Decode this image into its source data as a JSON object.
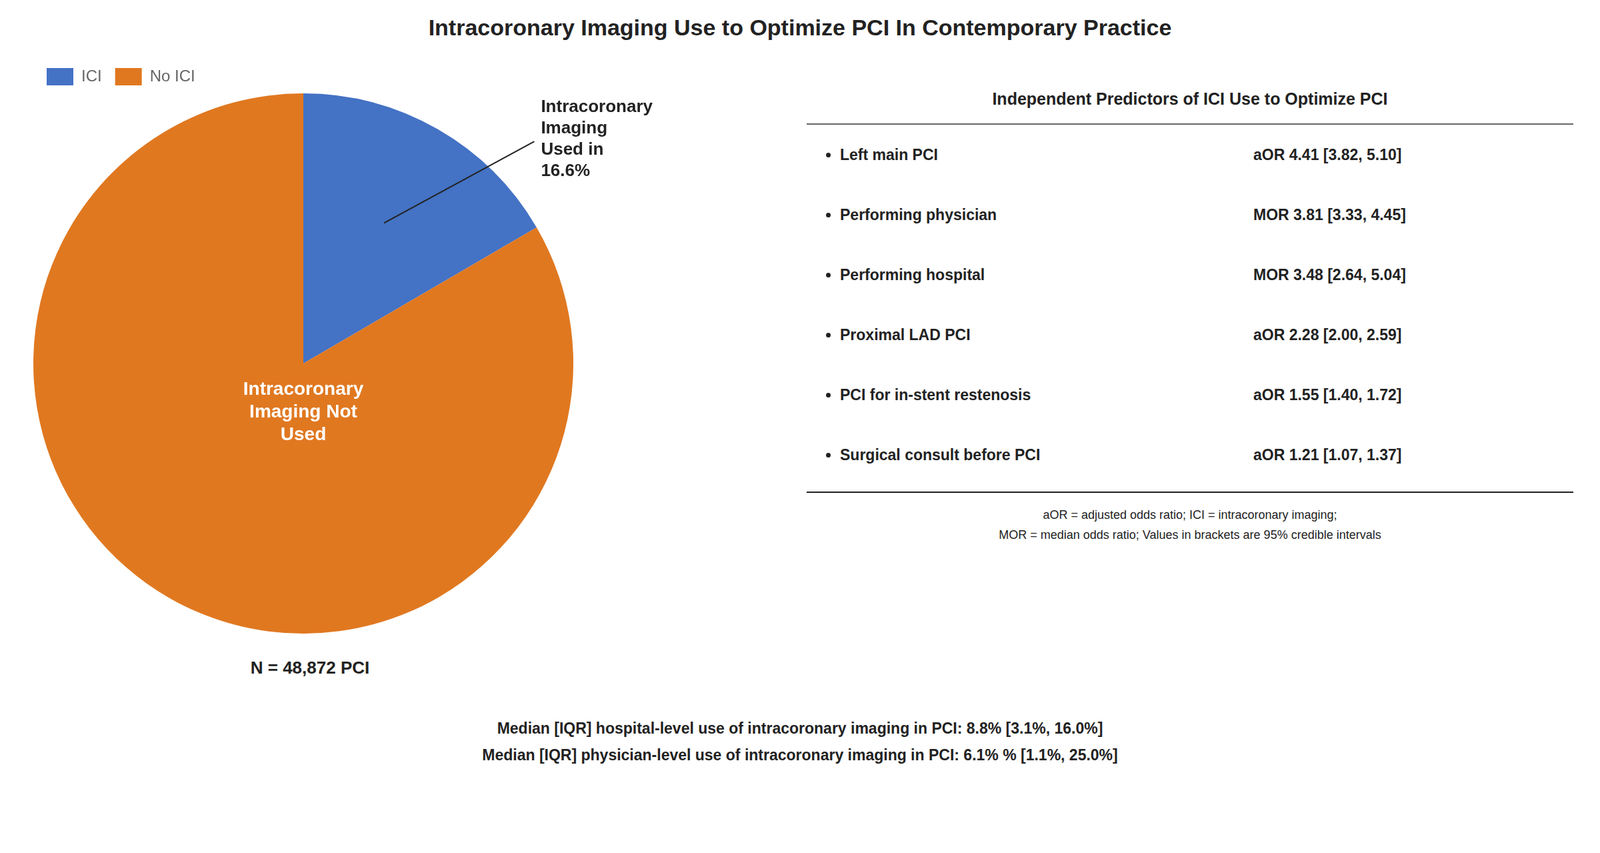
{
  "chart_data": {
    "type": "pie",
    "title": "Intracoronary Imaging Use to Optimize PCI In Contemporary Practice",
    "categories": [
      "ICI",
      "No ICI"
    ],
    "values": [
      16.6,
      83.4
    ],
    "colors": [
      "#4472C4",
      "#E07820"
    ],
    "legend": "upper left",
    "annotations": [
      "Intracoronary\nImaging\nUsed in\n16.6%",
      "Intracoronary\nImaging Not\nUsed",
      "N = 48,872 PCI"
    ],
    "table": {
      "header": "Independent Predictors of ICI Use to Optimize PCI",
      "rows": [
        {
          "label": "Left main PCI",
          "value": "aOR 4.41 [3.82, 5.10]"
        },
        {
          "label": "Performing physician",
          "value": "MOR 3.81 [3.33, 4.45]"
        },
        {
          "label": "Performing hospital",
          "value": "MOR 3.48 [2.64, 5.04]"
        },
        {
          "label": "Proximal LAD PCI",
          "value": "aOR 2.28 [2.00, 2.59]"
        },
        {
          "label": "PCI for in-stent restenosis",
          "value": "aOR 1.55 [1.40, 1.72]"
        },
        {
          "label": "Surgical consult before PCI",
          "value": "aOR 1.21 [1.07, 1.37]"
        }
      ]
    },
    "footnotes": [
      "aOR = adjusted odds ratio; ICI = intracoronary imaging;",
      "MOR = median odds ratio; Values in brackets are 95% credible intervals"
    ],
    "notes": [
      "Median [IQR] hospital-level use of intracoronary imaging in PCI: 8.8% [3.1%, 16.0%]",
      "Median [IQR] physician-level use of intracoronary imaging in PCI: 6.1% % [1.1%, 25.0%]"
    ]
  }
}
